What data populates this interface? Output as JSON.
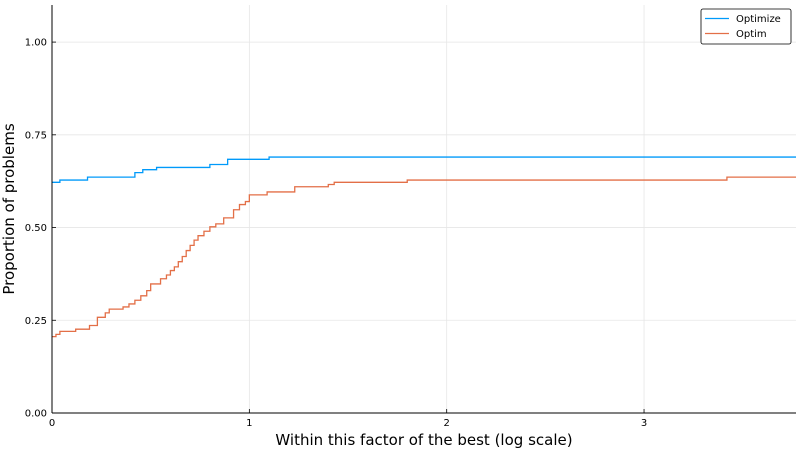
{
  "chart_data": {
    "type": "line",
    "line_shape": "step",
    "xlabel": "Within this factor of the best (log scale)",
    "ylabel": "Proportion of problems",
    "xlim": [
      0,
      3.77
    ],
    "ylim": [
      0,
      1.1
    ],
    "x_ticks": [
      0,
      1,
      2,
      3
    ],
    "x_tick_labels": [
      "0",
      "1",
      "2",
      "3"
    ],
    "y_ticks": [
      0,
      0.25,
      0.5,
      0.75,
      1.0
    ],
    "y_tick_labels": [
      "0.00",
      "0.25",
      "0.50",
      "0.75",
      "1.00"
    ],
    "grid": true,
    "legend_position": "top-right",
    "series": [
      {
        "name": "Optimize",
        "color": "#009AFA",
        "points": [
          [
            0.0,
            0.622
          ],
          [
            0.04,
            0.628
          ],
          [
            0.18,
            0.636
          ],
          [
            0.42,
            0.648
          ],
          [
            0.46,
            0.656
          ],
          [
            0.53,
            0.662
          ],
          [
            0.8,
            0.67
          ],
          [
            0.89,
            0.684
          ],
          [
            1.1,
            0.69
          ],
          [
            3.77,
            0.69
          ]
        ]
      },
      {
        "name": "Optim",
        "color": "#E36F47",
        "points": [
          [
            0.0,
            0.206
          ],
          [
            0.02,
            0.212
          ],
          [
            0.04,
            0.22
          ],
          [
            0.12,
            0.226
          ],
          [
            0.19,
            0.236
          ],
          [
            0.23,
            0.258
          ],
          [
            0.27,
            0.27
          ],
          [
            0.29,
            0.28
          ],
          [
            0.36,
            0.286
          ],
          [
            0.39,
            0.294
          ],
          [
            0.42,
            0.304
          ],
          [
            0.45,
            0.316
          ],
          [
            0.48,
            0.33
          ],
          [
            0.5,
            0.348
          ],
          [
            0.55,
            0.362
          ],
          [
            0.58,
            0.372
          ],
          [
            0.6,
            0.384
          ],
          [
            0.62,
            0.394
          ],
          [
            0.64,
            0.408
          ],
          [
            0.66,
            0.422
          ],
          [
            0.68,
            0.438
          ],
          [
            0.7,
            0.452
          ],
          [
            0.72,
            0.466
          ],
          [
            0.74,
            0.478
          ],
          [
            0.77,
            0.49
          ],
          [
            0.8,
            0.502
          ],
          [
            0.83,
            0.51
          ],
          [
            0.87,
            0.526
          ],
          [
            0.92,
            0.548
          ],
          [
            0.95,
            0.562
          ],
          [
            0.98,
            0.57
          ],
          [
            1.0,
            0.588
          ],
          [
            1.09,
            0.596
          ],
          [
            1.23,
            0.61
          ],
          [
            1.4,
            0.616
          ],
          [
            1.43,
            0.622
          ],
          [
            1.8,
            0.628
          ],
          [
            3.42,
            0.636
          ],
          [
            3.77,
            0.636
          ]
        ]
      }
    ]
  }
}
